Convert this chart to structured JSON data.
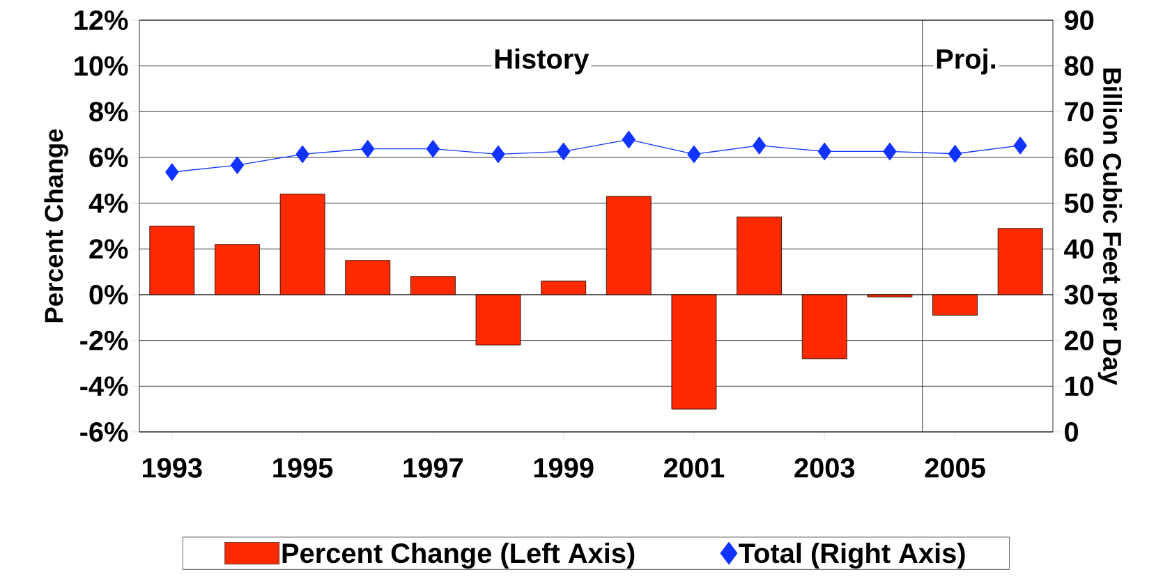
{
  "chart_data": {
    "type": "bar",
    "x": [
      1993,
      1994,
      1995,
      1996,
      1997,
      1998,
      1999,
      2000,
      2001,
      2002,
      2003,
      2004,
      2005,
      2006
    ],
    "xlim": [
      1992.5,
      2006.5
    ],
    "xticks": [
      1993,
      1995,
      1997,
      1999,
      2001,
      2003,
      2005
    ],
    "ylabel": "Percent Change",
    "y2label": "Billion Cubic Feet per Day",
    "ylim": [
      -6,
      12
    ],
    "yticks": [
      {
        "value": -6,
        "label": "-6%"
      },
      {
        "value": -4,
        "label": "-4%"
      },
      {
        "value": -2,
        "label": "-2%"
      },
      {
        "value": 0,
        "label": "0%"
      },
      {
        "value": 2,
        "label": "2%"
      },
      {
        "value": 4,
        "label": "4%"
      },
      {
        "value": 6,
        "label": "6%"
      },
      {
        "value": 8,
        "label": "8%"
      },
      {
        "value": 10,
        "label": "10%"
      },
      {
        "value": 12,
        "label": "12%"
      }
    ],
    "y2lim": [
      0,
      90
    ],
    "y2ticks": [
      0,
      10,
      20,
      30,
      40,
      50,
      60,
      70,
      80,
      90
    ],
    "grid": "y",
    "legend": "bottom",
    "series": [
      {
        "name": "Percent Change (Left Axis)",
        "color": "#ff2a00",
        "values": [
          3.0,
          2.2,
          4.4,
          1.5,
          0.8,
          -2.2,
          0.6,
          4.3,
          -5.0,
          3.4,
          -2.8,
          -0.1,
          -0.9,
          2.9
        ]
      },
      {
        "name": "Total (Right Axis)",
        "type": "line",
        "axis": "y2",
        "marker": "diamond",
        "color": "#1133ff",
        "values": [
          56.8,
          58.3,
          60.7,
          61.9,
          61.9,
          60.7,
          61.3,
          63.9,
          60.7,
          62.6,
          61.3,
          61.3,
          60.8,
          62.6
        ]
      }
    ],
    "ref_lines": [
      {
        "axis": "x",
        "value": 2004.5,
        "color": "#000000"
      }
    ],
    "annotations": [
      "History",
      "Proj."
    ]
  }
}
